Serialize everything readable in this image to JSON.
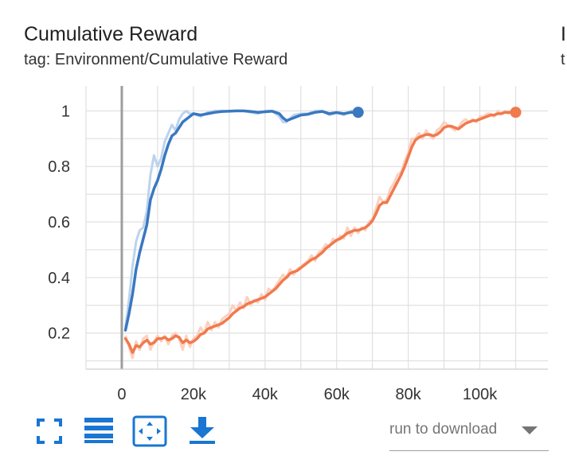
{
  "card": {
    "title": "Cumulative Reward",
    "tag": "tag: Environment/Cumulative Reward",
    "next_title_fragment": "I",
    "next_tag_fragment": "t"
  },
  "toolbar": {
    "fullscreen_icon": "fullscreen-icon",
    "data_table_icon": "list-icon",
    "fit_domain_icon": "fit-to-domain-icon",
    "download_icon": "download-icon",
    "icon_color": "#1976d2"
  },
  "download": {
    "placeholder": "run to download"
  },
  "chart_data": {
    "type": "line",
    "title": "",
    "xlabel": "",
    "ylabel": "",
    "xlim": [
      -10000,
      119000
    ],
    "ylim": [
      0.07,
      1.09
    ],
    "x_ticks": [
      0,
      20000,
      40000,
      60000,
      80000,
      100000
    ],
    "x_tick_labels": [
      "0",
      "20k",
      "40k",
      "60k",
      "80k",
      "100k"
    ],
    "y_ticks": [
      0.2,
      0.4,
      0.6,
      0.8,
      1.0
    ],
    "y_tick_labels": [
      "0.2",
      "0.4",
      "0.6",
      "0.8",
      "1"
    ],
    "grid": true,
    "legend": "none",
    "series": [
      {
        "color": "#3a78c0",
        "raw_color": "#bcd3ec",
        "x": [
          1000,
          2000,
          3000,
          4000,
          5000,
          6000,
          7000,
          8000,
          9000,
          10000,
          11000,
          12000,
          13000,
          14000,
          15000,
          16000,
          17000,
          18000,
          19000,
          20000,
          22000,
          24000,
          26000,
          28000,
          30000,
          32000,
          34000,
          36000,
          38000,
          40000,
          42000,
          44000,
          45000,
          46000,
          48000,
          50000,
          52000,
          54000,
          56000,
          58000,
          60000,
          62000,
          64000,
          66000
        ],
        "smoothed": [
          0.21,
          0.27,
          0.34,
          0.43,
          0.49,
          0.54,
          0.59,
          0.68,
          0.72,
          0.75,
          0.79,
          0.84,
          0.88,
          0.91,
          0.92,
          0.94,
          0.96,
          0.97,
          0.98,
          0.99,
          0.985,
          0.99,
          0.995,
          0.998,
          0.999,
          1.0,
          1.0,
          0.998,
          0.995,
          0.997,
          0.999,
          0.99,
          0.975,
          0.965,
          0.975,
          0.985,
          0.988,
          0.995,
          0.998,
          0.99,
          0.994,
          0.99,
          0.995,
          0.995
        ],
        "raw": [
          0.22,
          0.32,
          0.44,
          0.53,
          0.57,
          0.58,
          0.64,
          0.77,
          0.84,
          0.8,
          0.83,
          0.89,
          0.92,
          0.95,
          0.93,
          0.97,
          0.99,
          1.0,
          0.99,
          0.99,
          0.98,
          0.995,
          1.0,
          1.0,
          0.998,
          1.0,
          1.0,
          0.995,
          0.99,
          1.0,
          1.0,
          0.98,
          0.96,
          0.96,
          0.985,
          0.99,
          0.99,
          1.0,
          1.0,
          0.985,
          0.995,
          0.985,
          1.0,
          1.0
        ]
      },
      {
        "color": "#f07a4d",
        "raw_color": "#fbd0c0",
        "x": [
          1000,
          2000,
          3000,
          4000,
          5000,
          6000,
          7000,
          8000,
          9000,
          10000,
          11000,
          12000,
          13000,
          14000,
          15000,
          16000,
          17000,
          18000,
          19000,
          20000,
          21000,
          22000,
          23000,
          24000,
          25000,
          26000,
          27000,
          28000,
          29000,
          30000,
          31000,
          32000,
          33000,
          34000,
          35000,
          36000,
          37000,
          38000,
          39000,
          40000,
          41000,
          42000,
          43000,
          44000,
          45000,
          46000,
          47000,
          48000,
          49000,
          50000,
          51000,
          52000,
          53000,
          54000,
          55000,
          56000,
          57000,
          58000,
          59000,
          60000,
          61000,
          62000,
          63000,
          64000,
          65000,
          66000,
          67000,
          68000,
          69000,
          70000,
          71000,
          72000,
          73000,
          74000,
          75000,
          76000,
          77000,
          78000,
          79000,
          80000,
          81000,
          82000,
          83000,
          84000,
          85000,
          86000,
          87000,
          88000,
          89000,
          90000,
          91000,
          92000,
          93000,
          94000,
          95000,
          96000,
          97000,
          98000,
          99000,
          100000,
          101000,
          102000,
          103000,
          104000,
          105000,
          106000,
          107000,
          108000,
          109000,
          110000
        ],
        "smoothed": [
          0.18,
          0.16,
          0.13,
          0.155,
          0.15,
          0.165,
          0.175,
          0.16,
          0.165,
          0.18,
          0.18,
          0.185,
          0.175,
          0.18,
          0.19,
          0.185,
          0.165,
          0.175,
          0.165,
          0.17,
          0.18,
          0.195,
          0.2,
          0.215,
          0.22,
          0.225,
          0.23,
          0.235,
          0.245,
          0.255,
          0.27,
          0.28,
          0.29,
          0.295,
          0.305,
          0.31,
          0.315,
          0.32,
          0.325,
          0.33,
          0.34,
          0.35,
          0.36,
          0.375,
          0.39,
          0.4,
          0.415,
          0.42,
          0.425,
          0.435,
          0.445,
          0.455,
          0.465,
          0.47,
          0.48,
          0.49,
          0.505,
          0.515,
          0.525,
          0.535,
          0.54,
          0.55,
          0.56,
          0.565,
          0.57,
          0.57,
          0.575,
          0.58,
          0.59,
          0.605,
          0.63,
          0.66,
          0.67,
          0.67,
          0.695,
          0.72,
          0.745,
          0.77,
          0.8,
          0.835,
          0.87,
          0.895,
          0.905,
          0.91,
          0.915,
          0.915,
          0.91,
          0.915,
          0.925,
          0.94,
          0.945,
          0.945,
          0.94,
          0.935,
          0.945,
          0.955,
          0.96,
          0.965,
          0.965,
          0.97,
          0.975,
          0.98,
          0.985,
          0.985,
          0.99,
          0.99,
          0.995,
          0.995,
          0.995,
          0.995
        ],
        "raw": [
          0.19,
          0.15,
          0.11,
          0.17,
          0.14,
          0.18,
          0.19,
          0.14,
          0.17,
          0.19,
          0.17,
          0.19,
          0.16,
          0.19,
          0.2,
          0.18,
          0.14,
          0.19,
          0.15,
          0.18,
          0.19,
          0.22,
          0.2,
          0.24,
          0.21,
          0.24,
          0.22,
          0.25,
          0.26,
          0.27,
          0.3,
          0.28,
          0.31,
          0.29,
          0.33,
          0.3,
          0.32,
          0.31,
          0.34,
          0.32,
          0.36,
          0.35,
          0.37,
          0.39,
          0.41,
          0.4,
          0.43,
          0.41,
          0.43,
          0.44,
          0.45,
          0.46,
          0.48,
          0.46,
          0.49,
          0.5,
          0.52,
          0.51,
          0.54,
          0.53,
          0.55,
          0.54,
          0.58,
          0.55,
          0.58,
          0.56,
          0.58,
          0.57,
          0.6,
          0.61,
          0.65,
          0.69,
          0.67,
          0.68,
          0.72,
          0.74,
          0.77,
          0.78,
          0.82,
          0.85,
          0.9,
          0.9,
          0.92,
          0.9,
          0.93,
          0.91,
          0.9,
          0.93,
          0.94,
          0.96,
          0.95,
          0.94,
          0.93,
          0.94,
          0.96,
          0.97,
          0.96,
          0.97,
          0.96,
          0.98,
          0.98,
          0.99,
          0.99,
          0.98,
          1.0,
          0.99,
          1.0,
          0.99,
          1.0,
          1.0
        ]
      }
    ]
  }
}
